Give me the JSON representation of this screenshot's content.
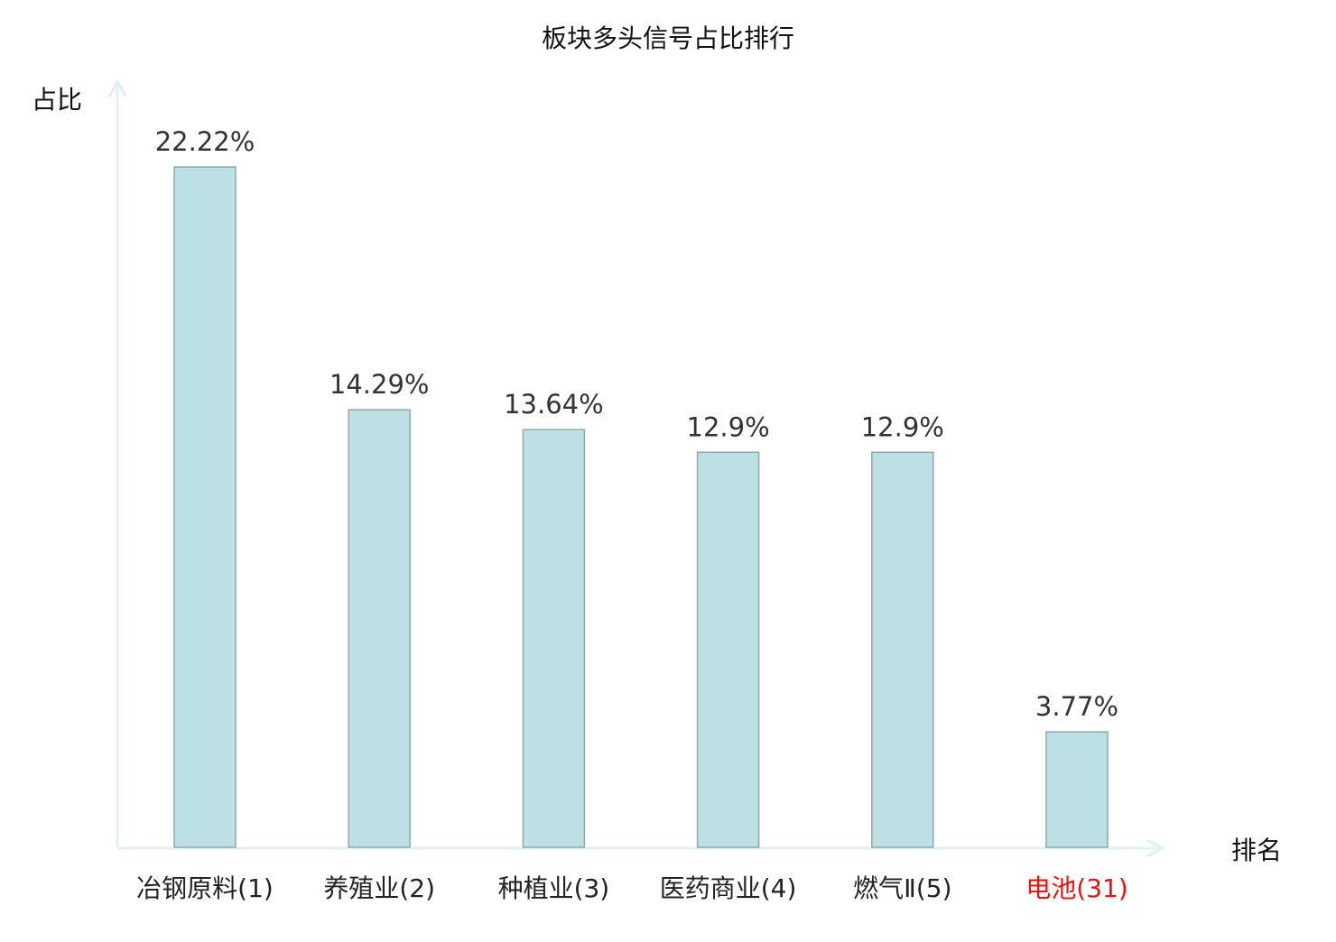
{
  "chart_data": {
    "type": "bar",
    "title": "板块多头信号占比排行",
    "ylabel": "占比",
    "xlabel": "排名",
    "categories": [
      "冶钢原料(1)",
      "养殖业(2)",
      "种植业(3)",
      "医药商业(4)",
      "燃气Ⅱ(5)",
      "电池(31)"
    ],
    "values": [
      22.22,
      14.29,
      13.64,
      12.9,
      12.9,
      3.77
    ],
    "data_labels": [
      "22.22%",
      "14.29%",
      "13.64%",
      "12.9%",
      "12.9%",
      "3.77%"
    ],
    "highlight_index": 5,
    "ylim": [
      0,
      24.5
    ],
    "grid": false,
    "colors": {
      "bar_fill": "#bce0e3",
      "bar_stroke": "#8fa9a9",
      "axis": "#e0f2f0",
      "label": "#222222",
      "highlight_label": "#ee1111"
    }
  }
}
